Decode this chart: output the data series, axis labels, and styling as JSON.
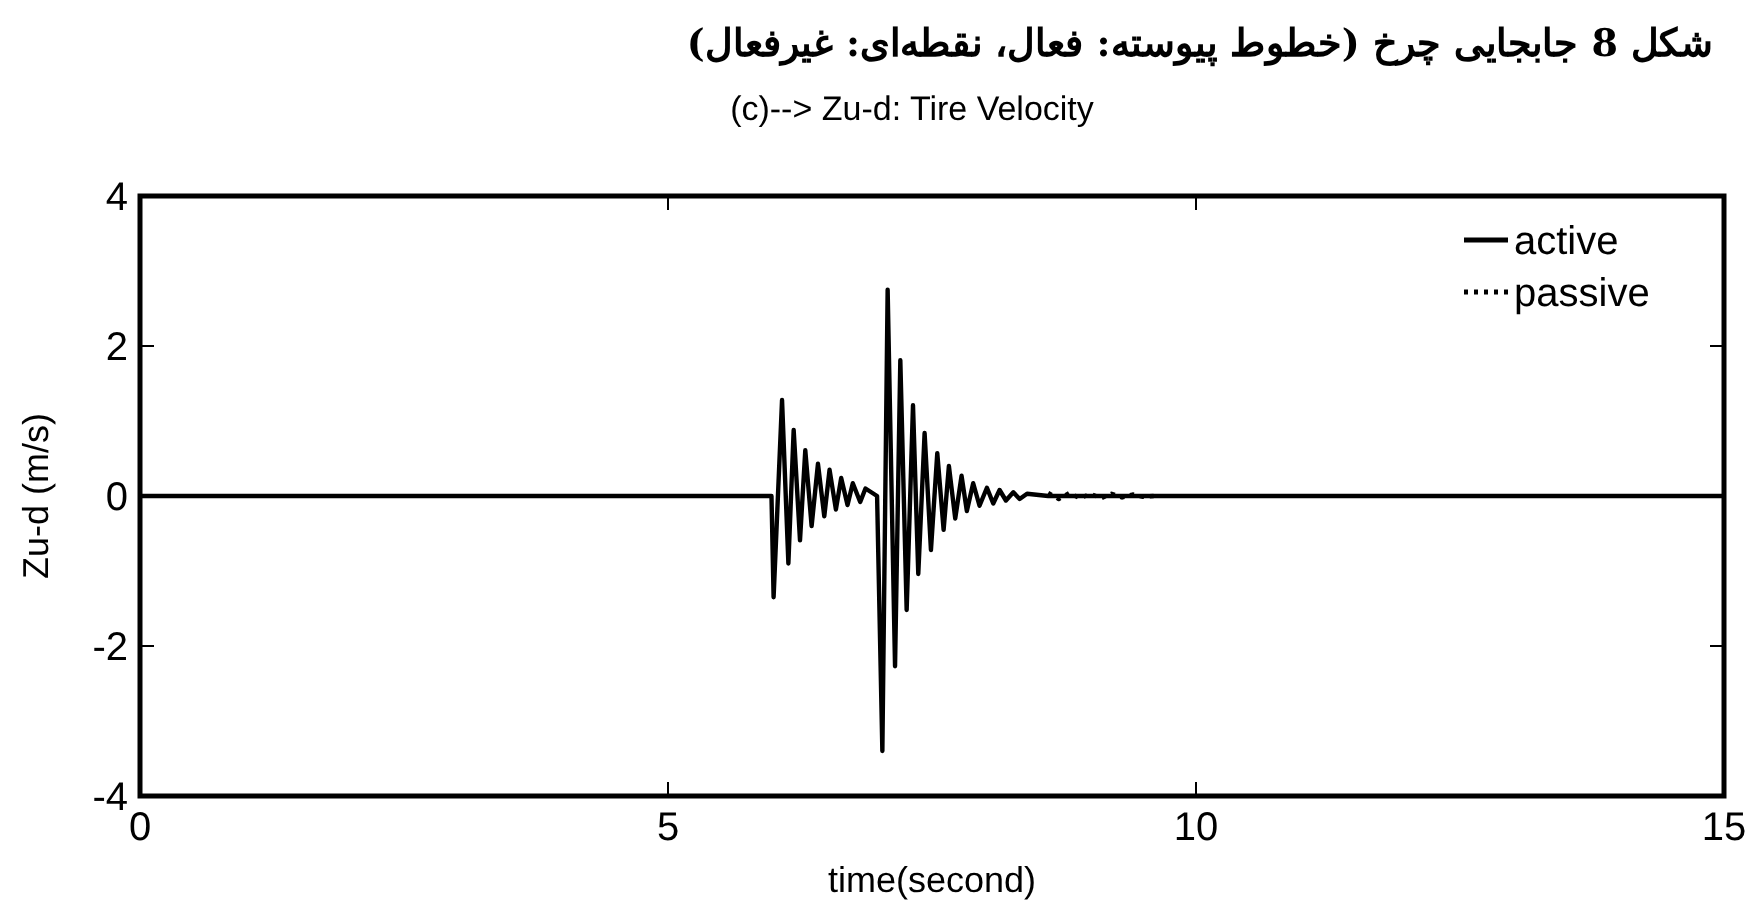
{
  "chart_data": {
    "type": "line",
    "title": "شکل 8 جابجایی چرخ (خطوط پیوسته: فعال، نقطه‌ای: غیرفعال)",
    "subtitle": "(c)--> Zu-d: Tire Velocity",
    "xlabel": "time(second)",
    "ylabel": "Zu-d (m/s)",
    "xlim": [
      0,
      15
    ],
    "xticks": [
      0,
      5,
      10,
      15
    ],
    "ylim": [
      -4,
      4
    ],
    "yticks": [
      -4,
      -2,
      0,
      2,
      4
    ],
    "legend": "top right",
    "grid": false,
    "series": [
      {
        "name": "active",
        "color": "#000000",
        "line_style": "solid",
        "x": [
          0,
          5.98,
          6.0,
          6.08,
          6.14,
          6.19,
          6.25,
          6.3,
          6.36,
          6.42,
          6.48,
          6.53,
          6.59,
          6.64,
          6.7,
          6.75,
          6.82,
          6.87,
          6.98,
          7.03,
          7.08,
          7.15,
          7.2,
          7.26,
          7.32,
          7.37,
          7.43,
          7.49,
          7.55,
          7.61,
          7.66,
          7.72,
          7.78,
          7.83,
          7.89,
          7.95,
          8.02,
          8.08,
          8.14,
          8.2,
          8.27,
          8.33,
          8.4,
          8.6,
          15
        ],
        "values": [
          0,
          0,
          -1.35,
          1.28,
          -0.9,
          0.88,
          -0.59,
          0.61,
          -0.4,
          0.43,
          -0.27,
          0.35,
          -0.18,
          0.24,
          -0.12,
          0.17,
          -0.08,
          0.1,
          0,
          -3.4,
          2.75,
          -2.27,
          1.81,
          -1.52,
          1.21,
          -1.04,
          0.84,
          -0.72,
          0.57,
          -0.45,
          0.4,
          -0.3,
          0.27,
          -0.2,
          0.17,
          -0.13,
          0.11,
          -0.1,
          0.08,
          -0.06,
          0.05,
          -0.04,
          0.03,
          0,
          0
        ]
      },
      {
        "name": "passive",
        "color": "#000000",
        "line_style": "dotted",
        "x": [
          8.6,
          8.7,
          8.8,
          8.9,
          9.0,
          9.1,
          9.2,
          9.3,
          9.4,
          9.5,
          9.6
        ],
        "values": [
          0.04,
          -0.04,
          0.04,
          -0.03,
          0.03,
          -0.03,
          0.03,
          -0.02,
          0.02,
          -0.01,
          0
        ]
      }
    ]
  }
}
